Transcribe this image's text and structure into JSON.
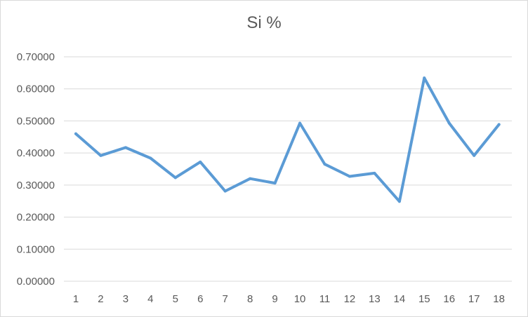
{
  "chart_data": {
    "type": "line",
    "title": "Si %",
    "xlabel": "",
    "ylabel": "",
    "x": [
      1,
      2,
      3,
      4,
      5,
      6,
      7,
      8,
      9,
      10,
      11,
      12,
      13,
      14,
      15,
      16,
      17,
      18
    ],
    "x_tick_labels": [
      "1",
      "2",
      "3",
      "4",
      "5",
      "6",
      "7",
      "8",
      "9",
      "10",
      "11",
      "12",
      "13",
      "14",
      "15",
      "16",
      "17",
      "18"
    ],
    "series": [
      {
        "values": [
          0.46,
          0.392,
          0.417,
          0.384,
          0.323,
          0.372,
          0.281,
          0.32,
          0.306,
          0.493,
          0.365,
          0.327,
          0.337,
          0.249,
          0.634,
          0.493,
          0.392,
          0.489
        ],
        "color": "#5b9bd5"
      }
    ],
    "ylim": [
      0,
      0.7
    ],
    "y_ticks": [
      0,
      0.1,
      0.2,
      0.3,
      0.4,
      0.5,
      0.6,
      0.7
    ],
    "y_tick_labels": [
      "0.00000",
      "0.10000",
      "0.20000",
      "0.30000",
      "0.40000",
      "0.50000",
      "0.60000",
      "0.70000"
    ],
    "grid": true,
    "legend": "none"
  },
  "colors": {
    "series_line": "#5b9bd5",
    "gridline": "#d9d9d9",
    "axis_text": "#595959"
  }
}
